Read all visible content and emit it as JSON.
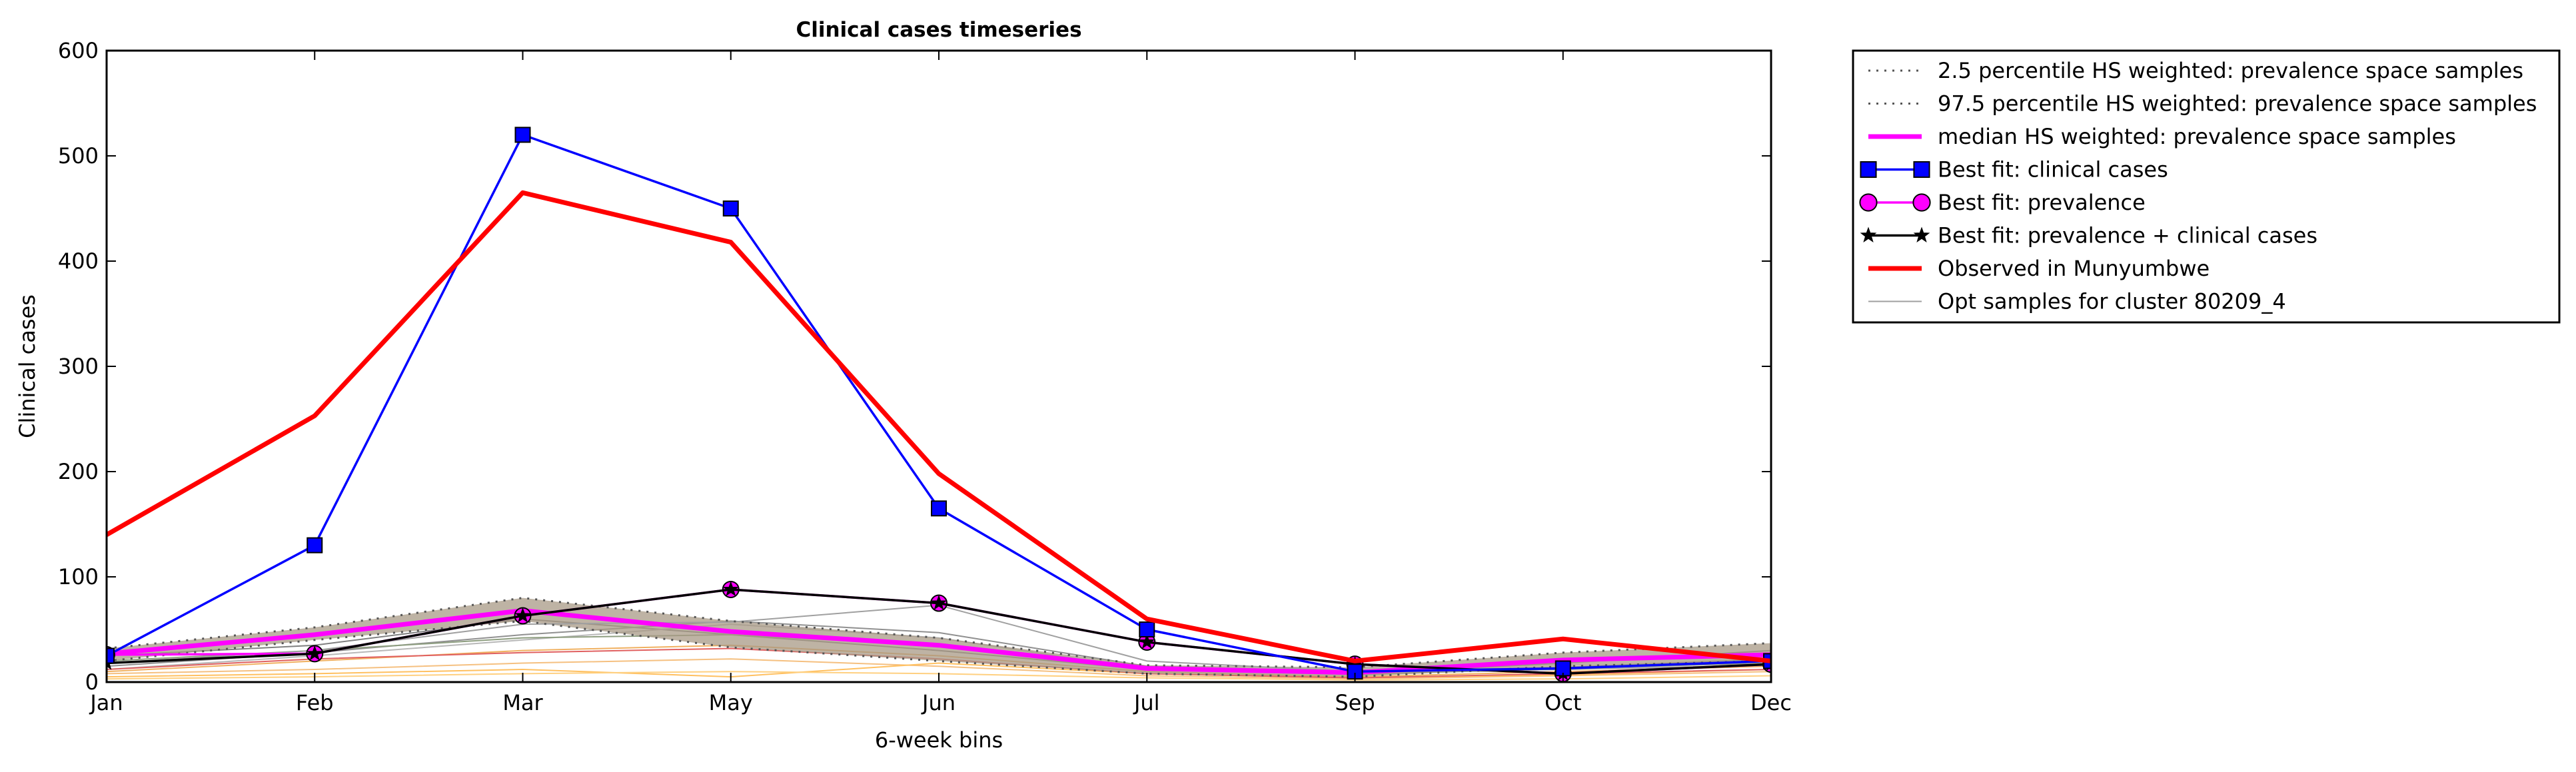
{
  "chart_data": {
    "type": "line",
    "title": "Clinical cases timeseries",
    "xlabel": "6-week bins",
    "ylabel": "Clinical cases",
    "categories": [
      "Jan",
      "Feb",
      "Mar",
      "May",
      "Jun",
      "Jul",
      "Sep",
      "Oct",
      "Dec"
    ],
    "ylim": [
      0,
      600
    ],
    "yticks": [
      "0",
      "100",
      "200",
      "300",
      "400",
      "500",
      "600"
    ],
    "grid": false,
    "legend_position": "outside-top-right",
    "band": {
      "lower": [
        20,
        40,
        58,
        33,
        20,
        8,
        5,
        15,
        20
      ],
      "upper": [
        32,
        52,
        80,
        58,
        42,
        16,
        14,
        28,
        37
      ],
      "color": "#a89a86"
    },
    "series": [
      {
        "name": "2.5 percentile HS weighted: prevalence space samples",
        "style": "dotted",
        "color": "#555555",
        "values": [
          20,
          40,
          58,
          33,
          20,
          8,
          5,
          15,
          20
        ]
      },
      {
        "name": "97.5 percentile HS weighted: prevalence space samples",
        "style": "dotted",
        "color": "#555555",
        "values": [
          32,
          52,
          80,
          58,
          42,
          16,
          14,
          28,
          37
        ]
      },
      {
        "name": "median HS weighted: prevalence space samples",
        "style": "solid-thick",
        "color": "#ff00ff",
        "values": [
          27,
          45,
          68,
          48,
          35,
          13,
          9,
          21,
          26
        ]
      },
      {
        "name": "Best fit: clinical cases",
        "style": "line-square",
        "color": "#0000ff",
        "values": [
          25,
          130,
          520,
          450,
          165,
          50,
          10,
          13,
          20
        ]
      },
      {
        "name": "Best fit: prevalence",
        "style": "line-circle",
        "color": "#ff00ff",
        "values": [
          26,
          27,
          63,
          88,
          75,
          38,
          17,
          8,
          17
        ]
      },
      {
        "name": "Best fit: prevalence + clinical cases",
        "style": "line-star",
        "color": "#000000",
        "values": [
          18,
          27,
          63,
          88,
          75,
          38,
          17,
          8,
          17
        ]
      },
      {
        "name": "Observed in Munyumbwe",
        "style": "solid-thick",
        "color": "#ff0000",
        "values": [
          140,
          253,
          465,
          418,
          198,
          60,
          20,
          41,
          20
        ]
      },
      {
        "name": "Opt samples for cluster 80209_4",
        "style": "thin",
        "color": "#a0a0a0",
        "values": [
          18,
          30,
          55,
          57,
          73,
          20,
          10,
          12,
          16
        ]
      }
    ],
    "background_samples": [
      {
        "color": "#808080",
        "values": [
          25,
          35,
          60,
          45,
          30,
          12,
          8,
          18,
          30
        ]
      },
      {
        "color": "#909090",
        "values": [
          15,
          28,
          45,
          58,
          47,
          15,
          10,
          14,
          22
        ]
      },
      {
        "color": "#b8b8b8",
        "values": [
          12,
          25,
          40,
          55,
          42,
          12,
          8,
          12,
          20
        ]
      },
      {
        "color": "#f0b060",
        "values": [
          10,
          20,
          30,
          35,
          25,
          10,
          5,
          10,
          15
        ]
      },
      {
        "color": "#f5c080",
        "values": [
          8,
          12,
          18,
          22,
          15,
          6,
          3,
          6,
          10
        ]
      },
      {
        "color": "#ffc060",
        "values": [
          5,
          8,
          12,
          5,
          18,
          8,
          4,
          7,
          12
        ]
      },
      {
        "color": "#ffd080",
        "values": [
          3,
          5,
          8,
          10,
          8,
          4,
          2,
          3,
          6
        ]
      },
      {
        "color": "#e06060",
        "values": [
          12,
          22,
          28,
          32,
          22,
          8,
          4,
          8,
          12
        ]
      },
      {
        "color": "#8e9e80",
        "values": [
          20,
          30,
          42,
          45,
          35,
          12,
          7,
          13,
          18
        ]
      }
    ]
  }
}
